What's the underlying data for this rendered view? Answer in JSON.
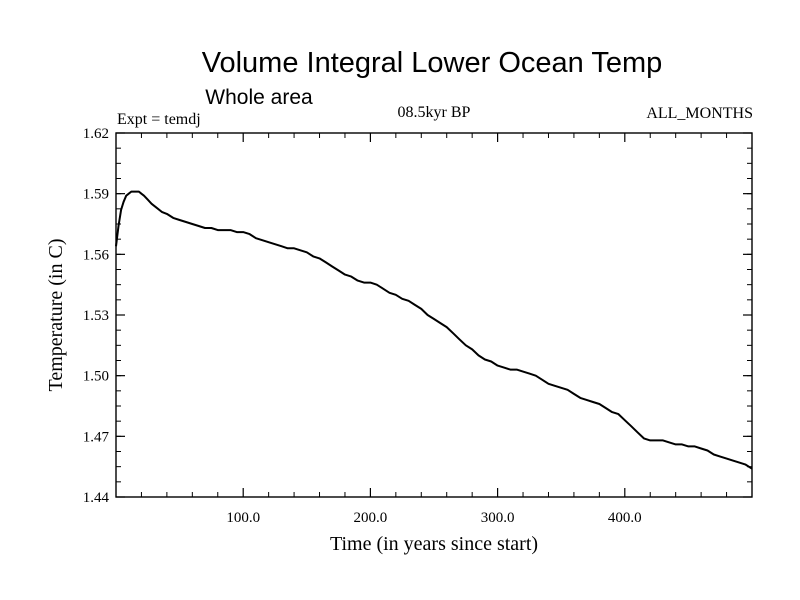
{
  "chart_data": {
    "type": "line",
    "title": "Volume Integral Lower Ocean Temp",
    "subtitle": "Whole area",
    "left_label": "Expt = temdj",
    "center_label": "08.5kyr BP",
    "right_label": "ALL_MONTHS",
    "xlabel": "Time (in years since start)",
    "ylabel": "Temperature (in C)",
    "xlim": [
      0,
      500
    ],
    "ylim": [
      1.44,
      1.62
    ],
    "xticks": [
      100,
      200,
      300,
      400
    ],
    "xtick_labels": [
      "100.0",
      "200.0",
      "300.0",
      "400.0"
    ],
    "yticks": [
      1.44,
      1.47,
      1.5,
      1.53,
      1.56,
      1.59,
      1.62
    ],
    "ytick_labels": [
      "1.44",
      "1.47",
      "1.50",
      "1.53",
      "1.56",
      "1.59",
      "1.62"
    ],
    "grid": false,
    "series": [
      {
        "name": "temdj",
        "x": [
          0,
          2,
          4,
          6,
          8,
          10,
          12,
          15,
          18,
          20,
          22,
          25,
          28,
          32,
          36,
          40,
          45,
          50,
          55,
          60,
          65,
          70,
          75,
          80,
          85,
          90,
          95,
          100,
          105,
          110,
          115,
          120,
          125,
          130,
          135,
          140,
          145,
          150,
          155,
          160,
          165,
          170,
          175,
          180,
          185,
          190,
          195,
          200,
          205,
          210,
          215,
          220,
          225,
          230,
          235,
          240,
          245,
          250,
          255,
          260,
          265,
          270,
          275,
          280,
          285,
          290,
          295,
          300,
          305,
          310,
          315,
          320,
          325,
          330,
          335,
          340,
          345,
          350,
          355,
          360,
          365,
          370,
          375,
          380,
          385,
          390,
          395,
          400,
          405,
          410,
          415,
          420,
          425,
          430,
          435,
          440,
          445,
          450,
          455,
          460,
          465,
          470,
          475,
          480,
          485,
          490,
          495,
          500
        ],
        "y": [
          1.564,
          1.574,
          1.582,
          1.586,
          1.589,
          1.59,
          1.591,
          1.591,
          1.591,
          1.59,
          1.589,
          1.587,
          1.585,
          1.583,
          1.581,
          1.58,
          1.578,
          1.577,
          1.576,
          1.575,
          1.574,
          1.573,
          1.573,
          1.572,
          1.572,
          1.572,
          1.571,
          1.571,
          1.57,
          1.568,
          1.567,
          1.566,
          1.565,
          1.564,
          1.563,
          1.563,
          1.562,
          1.561,
          1.559,
          1.558,
          1.556,
          1.554,
          1.552,
          1.55,
          1.549,
          1.547,
          1.546,
          1.546,
          1.545,
          1.543,
          1.541,
          1.54,
          1.538,
          1.537,
          1.535,
          1.533,
          1.53,
          1.528,
          1.526,
          1.524,
          1.521,
          1.518,
          1.515,
          1.513,
          1.51,
          1.508,
          1.507,
          1.505,
          1.504,
          1.503,
          1.503,
          1.502,
          1.501,
          1.5,
          1.498,
          1.496,
          1.495,
          1.494,
          1.493,
          1.491,
          1.489,
          1.488,
          1.487,
          1.486,
          1.484,
          1.482,
          1.481,
          1.478,
          1.475,
          1.472,
          1.469,
          1.468,
          1.468,
          1.468,
          1.467,
          1.466,
          1.466,
          1.465,
          1.465,
          1.464,
          1.463,
          1.461,
          1.46,
          1.459,
          1.458,
          1.457,
          1.456,
          1.454
        ]
      }
    ]
  }
}
